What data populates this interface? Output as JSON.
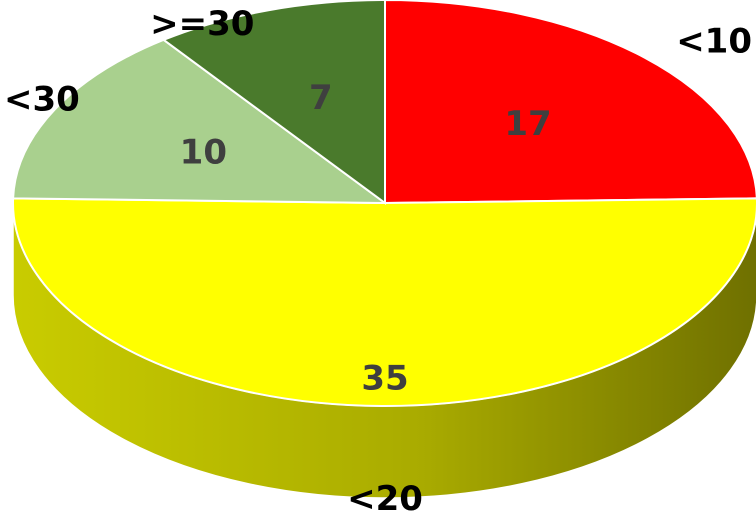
{
  "chart_data": {
    "type": "pie",
    "style": "3d",
    "title": "",
    "slices": [
      {
        "label": "<10",
        "value": 17,
        "color": "#ff0000",
        "side": "#b30000"
      },
      {
        "label": "<20",
        "value": 35,
        "color": "#ffff00",
        "side": "#a6a800"
      },
      {
        "label": "<30",
        "value": 10,
        "color": "#a9d08e",
        "side": "#7a9a66"
      },
      {
        "label": ">=30",
        "value": 7,
        "color": "#4a7a2c",
        "side": "#34571f"
      }
    ]
  }
}
